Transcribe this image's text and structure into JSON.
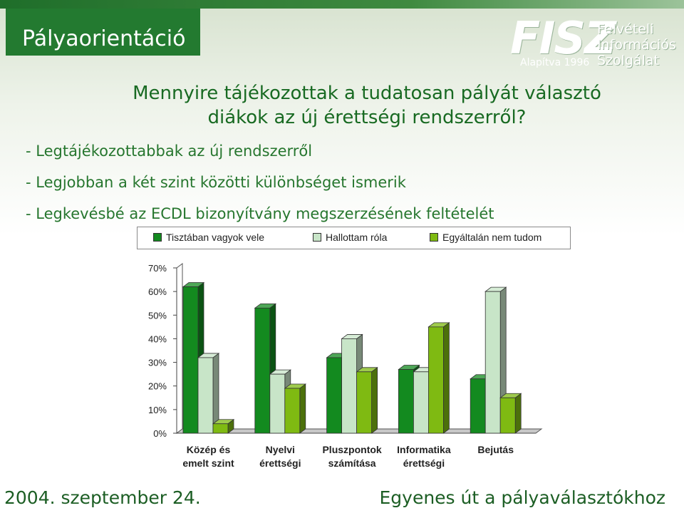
{
  "header": {
    "title": "Pályaorientáció",
    "logo": {
      "name": "FISZ",
      "tagline": [
        "Felvételi",
        "Információs",
        "Szolgálat"
      ],
      "founded": "Alapítva 1996"
    }
  },
  "question": [
    "Mennyire tájékozottak a tudatosan pályát választó",
    "diákok az új érettségi rendszerről?"
  ],
  "bullets": [
    "- Legtájékozottabbak az új rendszerről",
    "- Legjobban a két szint közötti különbséget ismerik",
    "- Legkevésbé az ECDL bizonyítvány megszerzésének feltételét"
  ],
  "chart_data": {
    "type": "bar",
    "categories": [
      [
        "Közép és",
        "emelt szint"
      ],
      [
        "Nyelvi",
        "érettségi"
      ],
      [
        "Pluszpontok",
        "számítása"
      ],
      [
        "Informatika",
        "érettségi"
      ],
      [
        "Bejutás"
      ]
    ],
    "series": [
      {
        "name": "Tisztában vagyok vele",
        "values": [
          62,
          53,
          32,
          27,
          23
        ],
        "color": "#138a1f"
      },
      {
        "name": "Hallottam róla",
        "values": [
          32,
          25,
          40,
          26,
          60
        ],
        "color": "#c8e5c8"
      },
      {
        "name": "Egyáltalán nem tudom",
        "values": [
          4,
          19,
          26,
          45,
          15
        ],
        "color": "#7fba12"
      }
    ],
    "y_ticks": [
      "0%",
      "10%",
      "20%",
      "30%",
      "40%",
      "50%",
      "60%",
      "70%"
    ],
    "ylim": [
      0,
      70
    ],
    "grid": false,
    "legend": "top"
  },
  "footer": {
    "date": "2004. szeptember 24.",
    "slogan": "Egyenes út a pályaválasztókhoz"
  }
}
